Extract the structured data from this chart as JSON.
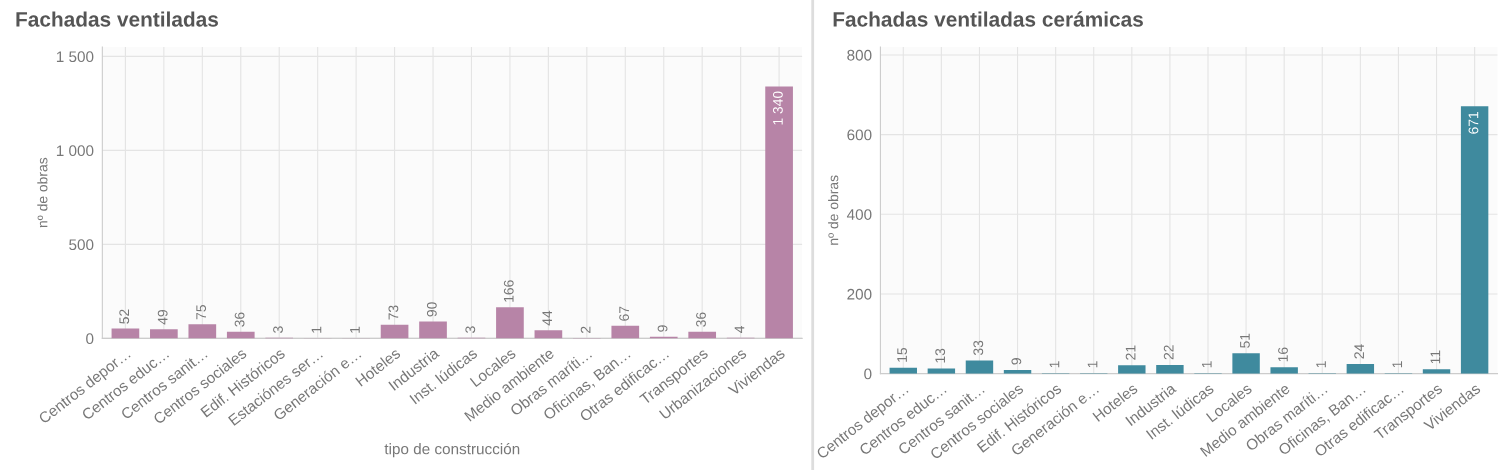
{
  "chart_data": [
    {
      "type": "bar",
      "title": "Fachadas ventiladas",
      "xlabel": "tipo de construcción",
      "ylabel": "nº de obras",
      "categories": [
        "Centros depor…",
        "Centros educ…",
        "Centros sanit…",
        "Centros sociales",
        "Edif. Históricos",
        "Estaciónes ser…",
        "Generación e…",
        "Hoteles",
        "Industria",
        "Inst. lúdicas",
        "Locales",
        "Medio ambiente",
        "Obras maríti…",
        "Oficinas, Ban…",
        "Otras edificac…",
        "Transportes",
        "Urbanizaciones",
        "Viviendas"
      ],
      "values": [
        52,
        49,
        75,
        36,
        3,
        1,
        1,
        73,
        90,
        3,
        166,
        44,
        2,
        67,
        9,
        36,
        4,
        1340
      ],
      "value_labels": [
        "52",
        "49",
        "75",
        "36",
        "3",
        "1",
        "1",
        "73",
        "90",
        "3",
        "166",
        "44",
        "2",
        "67",
        "9",
        "36",
        "4",
        "1 340"
      ],
      "color": "#b784a7",
      "ylim": [
        0,
        1550
      ],
      "yticks": [
        0,
        500,
        {
          "value": 1000,
          "label": "1 000"
        },
        {
          "value": 1500,
          "label": "1 500"
        }
      ],
      "grid": true,
      "legend": false
    },
    {
      "type": "bar",
      "title": "Fachadas ventiladas cerámicas",
      "ylabel": "nº de obras",
      "categories": [
        "Centros depor…",
        "Centros educ…",
        "Centros sanit…",
        "Centros sociales",
        "Edif. Históricos",
        "Generación e…",
        "Hoteles",
        "Industria",
        "Inst. lúdicas",
        "Locales",
        "Medio ambiente",
        "Obras maríti…",
        "Oficinas, Ban…",
        "Otras edificac…",
        "Transportes",
        "Viviendas"
      ],
      "values": [
        15,
        13,
        33,
        9,
        1,
        1,
        21,
        22,
        1,
        51,
        16,
        1,
        24,
        1,
        11,
        671
      ],
      "data_labels": true,
      "color": "#3f8a9e",
      "ylim": [
        0,
        820
      ],
      "yticks": [
        0,
        200,
        400,
        600,
        800
      ],
      "grid": true,
      "legend": false
    }
  ]
}
